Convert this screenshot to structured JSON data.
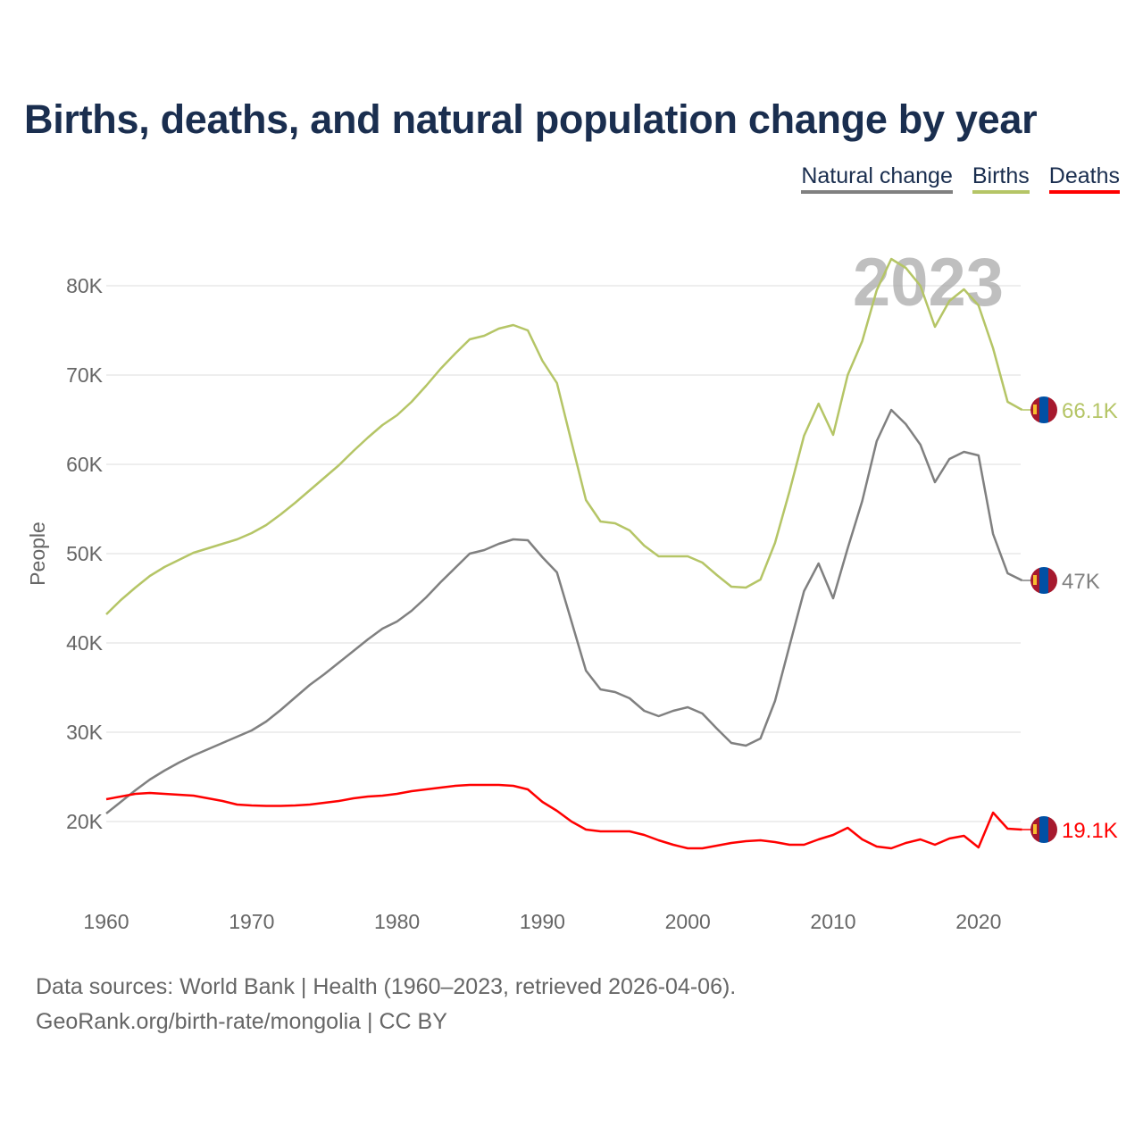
{
  "chart_data": {
    "type": "line",
    "title": "Births, deaths, and natural population change by year",
    "xlabel": "",
    "ylabel": "People",
    "xlim": [
      1960,
      2023
    ],
    "ylim": [
      13000,
      85000
    ],
    "x_ticks": [
      1960,
      1970,
      1980,
      1990,
      2000,
      2010,
      2020
    ],
    "x_tick_labels": [
      "1960",
      "1970",
      "1980",
      "1990",
      "2000",
      "2010",
      "2020"
    ],
    "y_ticks": [
      20000,
      30000,
      40000,
      50000,
      60000,
      70000,
      80000
    ],
    "y_tick_labels": [
      "20K",
      "30K",
      "40K",
      "50K",
      "60K",
      "70K",
      "80K"
    ],
    "grid": true,
    "legend_position": "top-right",
    "year_watermark": "2023",
    "x_start": 1960,
    "series": [
      {
        "name": "Natural change",
        "color": "#808080",
        "end_label": "47K",
        "values": [
          20900,
          22200,
          23500,
          24700,
          25700,
          26600,
          27400,
          28100,
          28800,
          29500,
          30200,
          31200,
          32500,
          33900,
          35300,
          36500,
          37800,
          39100,
          40400,
          41600,
          42400,
          43600,
          45100,
          46800,
          48400,
          50000,
          50400,
          51100,
          51600,
          51500,
          49600,
          47900,
          42400,
          36900,
          34800,
          34500,
          33800,
          32400,
          31800,
          32400,
          32800,
          32100,
          30400,
          28800,
          28500,
          29300,
          33500,
          39700,
          45800,
          48900,
          45000,
          50600,
          55900,
          62600,
          66100,
          64500,
          62200,
          58000,
          60600,
          61400,
          61000,
          52200,
          47800,
          47000
        ]
      },
      {
        "name": "Births",
        "color": "#b5c566",
        "end_label": "66.1K",
        "values": [
          43200,
          44800,
          46200,
          47500,
          48500,
          49300,
          50100,
          50600,
          51100,
          51600,
          52300,
          53200,
          54400,
          55700,
          57100,
          58500,
          59900,
          61500,
          63000,
          64400,
          65500,
          67000,
          68800,
          70700,
          72400,
          74000,
          74400,
          75200,
          75600,
          75000,
          71600,
          69100,
          62500,
          56000,
          53600,
          53400,
          52600,
          50900,
          49700,
          49700,
          49700,
          49000,
          47600,
          46300,
          46200,
          47100,
          51200,
          57000,
          63200,
          66800,
          63300,
          70000,
          73800,
          79500,
          83000,
          82000,
          80000,
          75400,
          78300,
          79600,
          77800,
          73000,
          67000,
          66100
        ]
      },
      {
        "name": "Deaths",
        "color": "#ff0000",
        "end_label": "19.1K",
        "values": [
          22500,
          22800,
          23100,
          23200,
          23100,
          23000,
          22900,
          22600,
          22300,
          21900,
          21800,
          21750,
          21750,
          21800,
          21900,
          22100,
          22300,
          22600,
          22800,
          22900,
          23100,
          23400,
          23600,
          23800,
          24000,
          24100,
          24100,
          24100,
          24000,
          23600,
          22200,
          21200,
          20000,
          19100,
          18900,
          18900,
          18900,
          18500,
          17900,
          17400,
          17000,
          17000,
          17300,
          17600,
          17800,
          17900,
          17700,
          17400,
          17400,
          18000,
          18500,
          19300,
          18000,
          17200,
          17000,
          17600,
          18000,
          17400,
          18100,
          18400,
          17100,
          21000,
          19200,
          19100
        ]
      }
    ]
  },
  "legend": [
    "Natural change",
    "Births",
    "Deaths"
  ],
  "legend_colors": [
    "#808080",
    "#b5c566",
    "#ff0000"
  ],
  "footer": {
    "line1": "Data sources: World Bank | Health (1960–2023, retrieved 2026-04-06).",
    "line2": "GeoRank.org/birth-rate/mongolia | CC BY"
  }
}
